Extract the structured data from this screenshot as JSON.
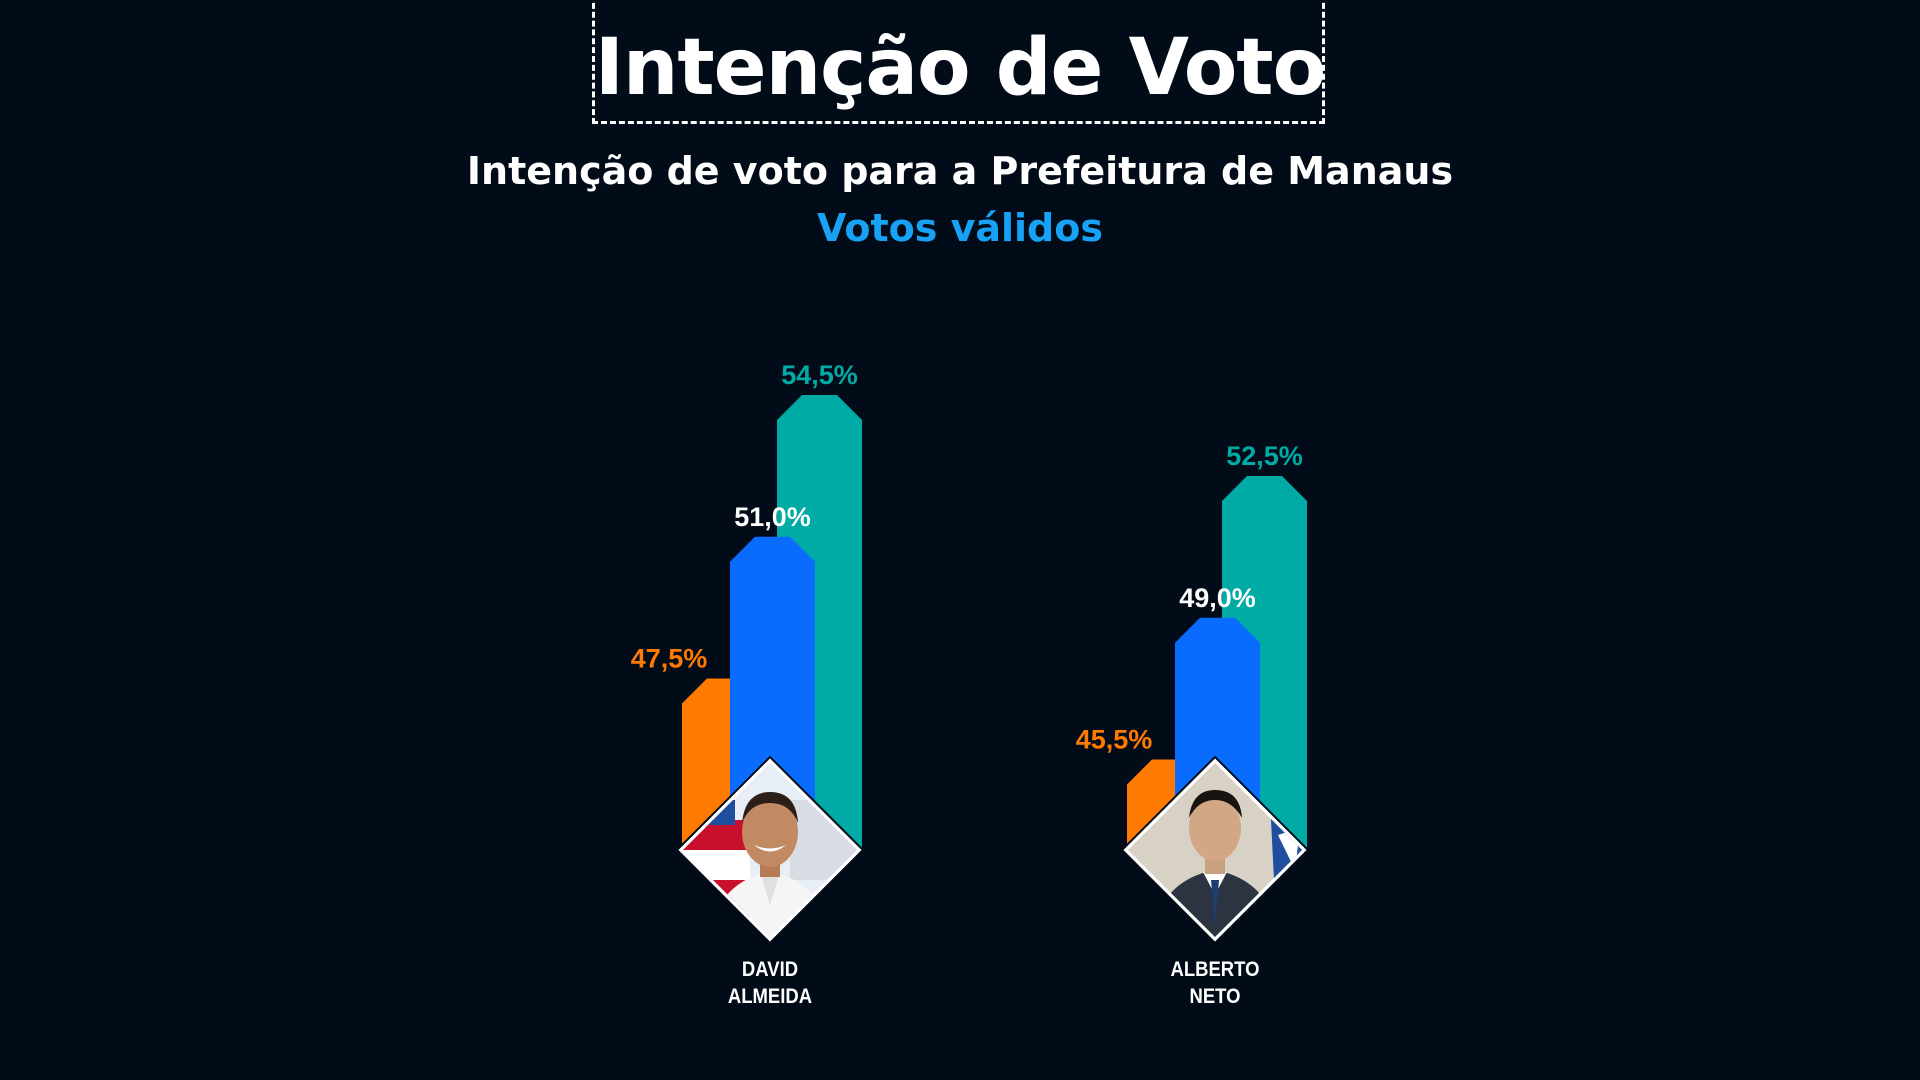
{
  "header": {
    "title": "Intenção de Voto",
    "subtitle": "Intenção de voto para a Prefeitura de Manaus",
    "note": "Votos válidos"
  },
  "colors": {
    "background": "#020b18",
    "low": "#ff7a00",
    "mid": "#0a6cff",
    "high": "#00aaa5",
    "note": "#18a2f5"
  },
  "chart_data": {
    "type": "bar",
    "title": "Intenção de voto para a Prefeitura de Manaus",
    "subtitle": "Votos válidos",
    "categories": [
      "DAVID ALMEIDA",
      "ALBERTO NETO"
    ],
    "category_lines": [
      [
        "DAVID",
        "ALMEIDA"
      ],
      [
        "ALBERTO",
        "NETO"
      ]
    ],
    "series": [
      {
        "values": [
          47.5,
          45.5
        ],
        "labels": [
          "47,5%",
          "45,5%"
        ],
        "color": "#ff7a00",
        "label_color": "#ff7a00"
      },
      {
        "values": [
          51.0,
          49.0
        ],
        "labels": [
          "51,0%",
          "49,0%"
        ],
        "color": "#0a6cff",
        "label_color": "#ffffff"
      },
      {
        "values": [
          54.5,
          52.5
        ],
        "labels": [
          "54,5%",
          "52,5%"
        ],
        "color": "#00aaa5",
        "label_color": "#00aaa5"
      }
    ],
    "unit": "%",
    "xlabel": "",
    "ylabel": "",
    "grid": false,
    "legend": "none"
  }
}
